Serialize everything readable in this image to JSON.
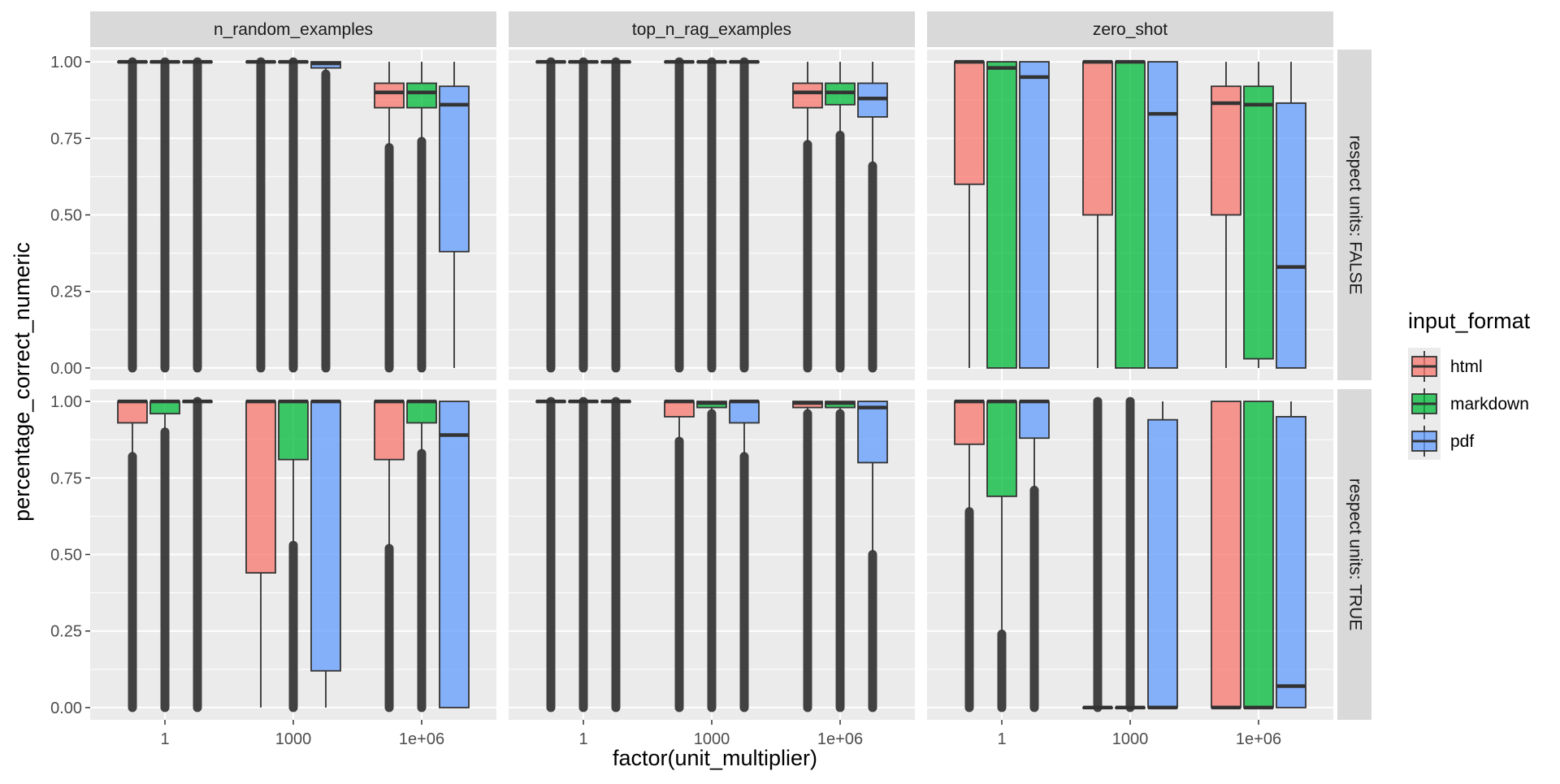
{
  "chart_data": {
    "type": "boxplot",
    "xlabel": "factor(unit_multiplier)",
    "ylabel": "percentage_correct_numeric",
    "categories": [
      "1",
      "1000",
      "1e+06"
    ],
    "y_ticks": [
      "0.00",
      "0.25",
      "0.50",
      "0.75",
      "1.00"
    ],
    "ylim": [
      -0.04,
      1.04
    ],
    "grid": true,
    "legend_position": "right",
    "legend": {
      "title": "input_format",
      "items": [
        {
          "name": "html",
          "color": "#F8766D"
        },
        {
          "name": "markdown",
          "color": "#00BA38"
        },
        {
          "name": "pdf",
          "color": "#619CFF"
        }
      ]
    },
    "columns": [
      "n_random_examples",
      "top_n_rag_examples",
      "zero_shot"
    ],
    "rows": [
      "respect units: FALSE",
      "respect units: TRUE"
    ],
    "series_order": [
      "html",
      "markdown",
      "pdf"
    ],
    "panels": [
      {
        "column": "n_random_examples",
        "row": "respect units: FALSE",
        "boxes": [
          {
            "category": "1",
            "series": "html",
            "q1": 1.0,
            "median": 1.0,
            "q3": 1.0,
            "whisker_low": 1.0,
            "whisker_high": 1.0,
            "outlier_range": [
              0.0,
              1.0
            ]
          },
          {
            "category": "1",
            "series": "markdown",
            "q1": 1.0,
            "median": 1.0,
            "q3": 1.0,
            "whisker_low": 1.0,
            "whisker_high": 1.0,
            "outlier_range": [
              0.0,
              1.0
            ]
          },
          {
            "category": "1",
            "series": "pdf",
            "q1": 1.0,
            "median": 1.0,
            "q3": 1.0,
            "whisker_low": 1.0,
            "whisker_high": 1.0,
            "outlier_range": [
              0.0,
              1.0
            ]
          },
          {
            "category": "1000",
            "series": "html",
            "q1": 1.0,
            "median": 1.0,
            "q3": 1.0,
            "whisker_low": 1.0,
            "whisker_high": 1.0,
            "outlier_range": [
              0.0,
              1.0
            ]
          },
          {
            "category": "1000",
            "series": "markdown",
            "q1": 1.0,
            "median": 1.0,
            "q3": 1.0,
            "whisker_low": 1.0,
            "whisker_high": 1.0,
            "outlier_range": [
              0.0,
              1.0
            ]
          },
          {
            "category": "1000",
            "series": "pdf",
            "q1": 0.98,
            "median": 0.995,
            "q3": 1.0,
            "whisker_low": 0.97,
            "whisker_high": 1.0,
            "outlier_range": [
              0.0,
              0.96
            ]
          },
          {
            "category": "1e+06",
            "series": "html",
            "q1": 0.85,
            "median": 0.9,
            "q3": 0.93,
            "whisker_low": 0.73,
            "whisker_high": 1.0,
            "outlier_range": [
              0.0,
              0.72
            ]
          },
          {
            "category": "1e+06",
            "series": "markdown",
            "q1": 0.85,
            "median": 0.9,
            "q3": 0.93,
            "whisker_low": 0.75,
            "whisker_high": 1.0,
            "outlier_range": [
              0.0,
              0.74
            ]
          },
          {
            "category": "1e+06",
            "series": "pdf",
            "q1": 0.38,
            "median": 0.86,
            "q3": 0.92,
            "whisker_low": 0.0,
            "whisker_high": 1.0,
            "outlier_range": null
          }
        ]
      },
      {
        "column": "top_n_rag_examples",
        "row": "respect units: FALSE",
        "boxes": [
          {
            "category": "1",
            "series": "html",
            "q1": 1.0,
            "median": 1.0,
            "q3": 1.0,
            "whisker_low": 1.0,
            "whisker_high": 1.0,
            "outlier_range": [
              0.0,
              1.0
            ]
          },
          {
            "category": "1",
            "series": "markdown",
            "q1": 1.0,
            "median": 1.0,
            "q3": 1.0,
            "whisker_low": 1.0,
            "whisker_high": 1.0,
            "outlier_range": [
              0.0,
              1.0
            ]
          },
          {
            "category": "1",
            "series": "pdf",
            "q1": 1.0,
            "median": 1.0,
            "q3": 1.0,
            "whisker_low": 1.0,
            "whisker_high": 1.0,
            "outlier_range": [
              0.0,
              1.0
            ]
          },
          {
            "category": "1000",
            "series": "html",
            "q1": 1.0,
            "median": 1.0,
            "q3": 1.0,
            "whisker_low": 1.0,
            "whisker_high": 1.0,
            "outlier_range": [
              0.0,
              1.0
            ]
          },
          {
            "category": "1000",
            "series": "markdown",
            "q1": 1.0,
            "median": 1.0,
            "q3": 1.0,
            "whisker_low": 1.0,
            "whisker_high": 1.0,
            "outlier_range": [
              0.0,
              1.0
            ]
          },
          {
            "category": "1000",
            "series": "pdf",
            "q1": 1.0,
            "median": 1.0,
            "q3": 1.0,
            "whisker_low": 1.0,
            "whisker_high": 1.0,
            "outlier_range": [
              0.0,
              1.0
            ]
          },
          {
            "category": "1e+06",
            "series": "html",
            "q1": 0.85,
            "median": 0.9,
            "q3": 0.93,
            "whisker_low": 0.74,
            "whisker_high": 1.0,
            "outlier_range": [
              0.0,
              0.73
            ]
          },
          {
            "category": "1e+06",
            "series": "markdown",
            "q1": 0.86,
            "median": 0.9,
            "q3": 0.93,
            "whisker_low": 0.77,
            "whisker_high": 1.0,
            "outlier_range": [
              0.0,
              0.76
            ]
          },
          {
            "category": "1e+06",
            "series": "pdf",
            "q1": 0.82,
            "median": 0.88,
            "q3": 0.93,
            "whisker_low": 0.67,
            "whisker_high": 1.0,
            "outlier_range": [
              0.0,
              0.66
            ]
          }
        ]
      },
      {
        "column": "zero_shot",
        "row": "respect units: FALSE",
        "boxes": [
          {
            "category": "1",
            "series": "html",
            "q1": 0.6,
            "median": 1.0,
            "q3": 1.0,
            "whisker_low": 0.0,
            "whisker_high": 1.0,
            "outlier_range": null
          },
          {
            "category": "1",
            "series": "markdown",
            "q1": 0.0,
            "median": 0.98,
            "q3": 1.0,
            "whisker_low": 0.0,
            "whisker_high": 1.0,
            "outlier_range": null
          },
          {
            "category": "1",
            "series": "pdf",
            "q1": 0.0,
            "median": 0.95,
            "q3": 1.0,
            "whisker_low": 0.0,
            "whisker_high": 1.0,
            "outlier_range": null
          },
          {
            "category": "1000",
            "series": "html",
            "q1": 0.5,
            "median": 1.0,
            "q3": 1.0,
            "whisker_low": 0.0,
            "whisker_high": 1.0,
            "outlier_range": null
          },
          {
            "category": "1000",
            "series": "markdown",
            "q1": 0.0,
            "median": 1.0,
            "q3": 1.0,
            "whisker_low": 0.0,
            "whisker_high": 1.0,
            "outlier_range": null
          },
          {
            "category": "1000",
            "series": "pdf",
            "q1": 0.0,
            "median": 0.83,
            "q3": 1.0,
            "whisker_low": 0.0,
            "whisker_high": 1.0,
            "outlier_range": null
          },
          {
            "category": "1e+06",
            "series": "html",
            "q1": 0.5,
            "median": 0.865,
            "q3": 0.92,
            "whisker_low": 0.0,
            "whisker_high": 1.0,
            "outlier_range": null
          },
          {
            "category": "1e+06",
            "series": "markdown",
            "q1": 0.03,
            "median": 0.86,
            "q3": 0.92,
            "whisker_low": 0.0,
            "whisker_high": 1.0,
            "outlier_range": null
          },
          {
            "category": "1e+06",
            "series": "pdf",
            "q1": 0.0,
            "median": 0.33,
            "q3": 0.865,
            "whisker_low": 0.0,
            "whisker_high": 1.0,
            "outlier_range": null
          }
        ]
      },
      {
        "column": "n_random_examples",
        "row": "respect units: TRUE",
        "boxes": [
          {
            "category": "1",
            "series": "html",
            "q1": 0.93,
            "median": 1.0,
            "q3": 1.0,
            "whisker_low": 0.83,
            "whisker_high": 1.0,
            "outlier_range": [
              0.0,
              0.82
            ]
          },
          {
            "category": "1",
            "series": "markdown",
            "q1": 0.96,
            "median": 1.0,
            "q3": 1.0,
            "whisker_low": 0.91,
            "whisker_high": 1.0,
            "outlier_range": [
              0.0,
              0.9
            ]
          },
          {
            "category": "1",
            "series": "pdf",
            "q1": 1.0,
            "median": 1.0,
            "q3": 1.0,
            "whisker_low": 1.0,
            "whisker_high": 1.0,
            "outlier_range": [
              0.0,
              1.0
            ]
          },
          {
            "category": "1000",
            "series": "html",
            "q1": 0.44,
            "median": 1.0,
            "q3": 1.0,
            "whisker_low": 0.0,
            "whisker_high": 1.0,
            "outlier_range": null
          },
          {
            "category": "1000",
            "series": "markdown",
            "q1": 0.81,
            "median": 1.0,
            "q3": 1.0,
            "whisker_low": 0.54,
            "whisker_high": 1.0,
            "outlier_range": [
              0.0,
              0.53
            ]
          },
          {
            "category": "1000",
            "series": "pdf",
            "q1": 0.12,
            "median": 1.0,
            "q3": 1.0,
            "whisker_low": 0.0,
            "whisker_high": 1.0,
            "outlier_range": null
          },
          {
            "category": "1e+06",
            "series": "html",
            "q1": 0.81,
            "median": 1.0,
            "q3": 1.0,
            "whisker_low": 0.53,
            "whisker_high": 1.0,
            "outlier_range": [
              0.0,
              0.52
            ]
          },
          {
            "category": "1e+06",
            "series": "markdown",
            "q1": 0.93,
            "median": 1.0,
            "q3": 1.0,
            "whisker_low": 0.84,
            "whisker_high": 1.0,
            "outlier_range": [
              0.0,
              0.83
            ]
          },
          {
            "category": "1e+06",
            "series": "pdf",
            "q1": 0.0,
            "median": 0.89,
            "q3": 1.0,
            "whisker_low": 0.0,
            "whisker_high": 1.0,
            "outlier_range": null
          }
        ]
      },
      {
        "column": "top_n_rag_examples",
        "row": "respect units: TRUE",
        "boxes": [
          {
            "category": "1",
            "series": "html",
            "q1": 1.0,
            "median": 1.0,
            "q3": 1.0,
            "whisker_low": 1.0,
            "whisker_high": 1.0,
            "outlier_range": [
              0.0,
              1.0
            ]
          },
          {
            "category": "1",
            "series": "markdown",
            "q1": 1.0,
            "median": 1.0,
            "q3": 1.0,
            "whisker_low": 1.0,
            "whisker_high": 1.0,
            "outlier_range": [
              0.0,
              1.0
            ]
          },
          {
            "category": "1",
            "series": "pdf",
            "q1": 1.0,
            "median": 1.0,
            "q3": 1.0,
            "whisker_low": 1.0,
            "whisker_high": 1.0,
            "outlier_range": [
              0.0,
              1.0
            ]
          },
          {
            "category": "1000",
            "series": "html",
            "q1": 0.95,
            "median": 1.0,
            "q3": 1.0,
            "whisker_low": 0.88,
            "whisker_high": 1.0,
            "outlier_range": [
              0.0,
              0.87
            ]
          },
          {
            "category": "1000",
            "series": "markdown",
            "q1": 0.98,
            "median": 0.995,
            "q3": 1.0,
            "whisker_low": 0.97,
            "whisker_high": 1.0,
            "outlier_range": [
              0.0,
              0.96
            ]
          },
          {
            "category": "1000",
            "series": "pdf",
            "q1": 0.93,
            "median": 1.0,
            "q3": 1.0,
            "whisker_low": 0.83,
            "whisker_high": 1.0,
            "outlier_range": [
              0.0,
              0.82
            ]
          },
          {
            "category": "1e+06",
            "series": "html",
            "q1": 0.98,
            "median": 0.995,
            "q3": 1.0,
            "whisker_low": 0.97,
            "whisker_high": 1.0,
            "outlier_range": [
              0.0,
              0.96
            ]
          },
          {
            "category": "1e+06",
            "series": "markdown",
            "q1": 0.98,
            "median": 0.995,
            "q3": 1.0,
            "whisker_low": 0.97,
            "whisker_high": 1.0,
            "outlier_range": [
              0.0,
              0.96
            ]
          },
          {
            "category": "1e+06",
            "series": "pdf",
            "q1": 0.8,
            "median": 0.98,
            "q3": 1.0,
            "whisker_low": 0.51,
            "whisker_high": 1.0,
            "outlier_range": [
              0.0,
              0.5
            ]
          }
        ]
      },
      {
        "column": "zero_shot",
        "row": "respect units: TRUE",
        "boxes": [
          {
            "category": "1",
            "series": "html",
            "q1": 0.86,
            "median": 1.0,
            "q3": 1.0,
            "whisker_low": 0.65,
            "whisker_high": 1.0,
            "outlier_range": [
              0.0,
              0.64
            ]
          },
          {
            "category": "1",
            "series": "markdown",
            "q1": 0.69,
            "median": 1.0,
            "q3": 1.0,
            "whisker_low": 0.25,
            "whisker_high": 1.0,
            "outlier_range": [
              0.0,
              0.24
            ]
          },
          {
            "category": "1",
            "series": "pdf",
            "q1": 0.88,
            "median": 1.0,
            "q3": 1.0,
            "whisker_low": 0.72,
            "whisker_high": 1.0,
            "outlier_range": [
              0.0,
              0.71
            ]
          },
          {
            "category": "1000",
            "series": "html",
            "q1": 0.0,
            "median": 0.0,
            "q3": 0.0,
            "whisker_low": 0.0,
            "whisker_high": 0.0,
            "outlier_range": [
              0.0,
              1.0
            ]
          },
          {
            "category": "1000",
            "series": "markdown",
            "q1": 0.0,
            "median": 0.0,
            "q3": 0.0,
            "whisker_low": 0.0,
            "whisker_high": 0.0,
            "outlier_range": [
              0.0,
              1.0
            ]
          },
          {
            "category": "1000",
            "series": "pdf",
            "q1": 0.0,
            "median": 0.0,
            "q3": 0.94,
            "whisker_low": 0.0,
            "whisker_high": 1.0,
            "outlier_range": null
          },
          {
            "category": "1e+06",
            "series": "html",
            "q1": 0.0,
            "median": 0.0,
            "q3": 1.0,
            "whisker_low": 0.0,
            "whisker_high": 1.0,
            "outlier_range": null
          },
          {
            "category": "1e+06",
            "series": "markdown",
            "q1": 0.0,
            "median": 0.0,
            "q3": 1.0,
            "whisker_low": 0.0,
            "whisker_high": 1.0,
            "outlier_range": null
          },
          {
            "category": "1e+06",
            "series": "pdf",
            "q1": 0.0,
            "median": 0.07,
            "q3": 0.95,
            "whisker_low": 0.0,
            "whisker_high": 1.0,
            "outlier_range": null
          }
        ]
      }
    ]
  }
}
